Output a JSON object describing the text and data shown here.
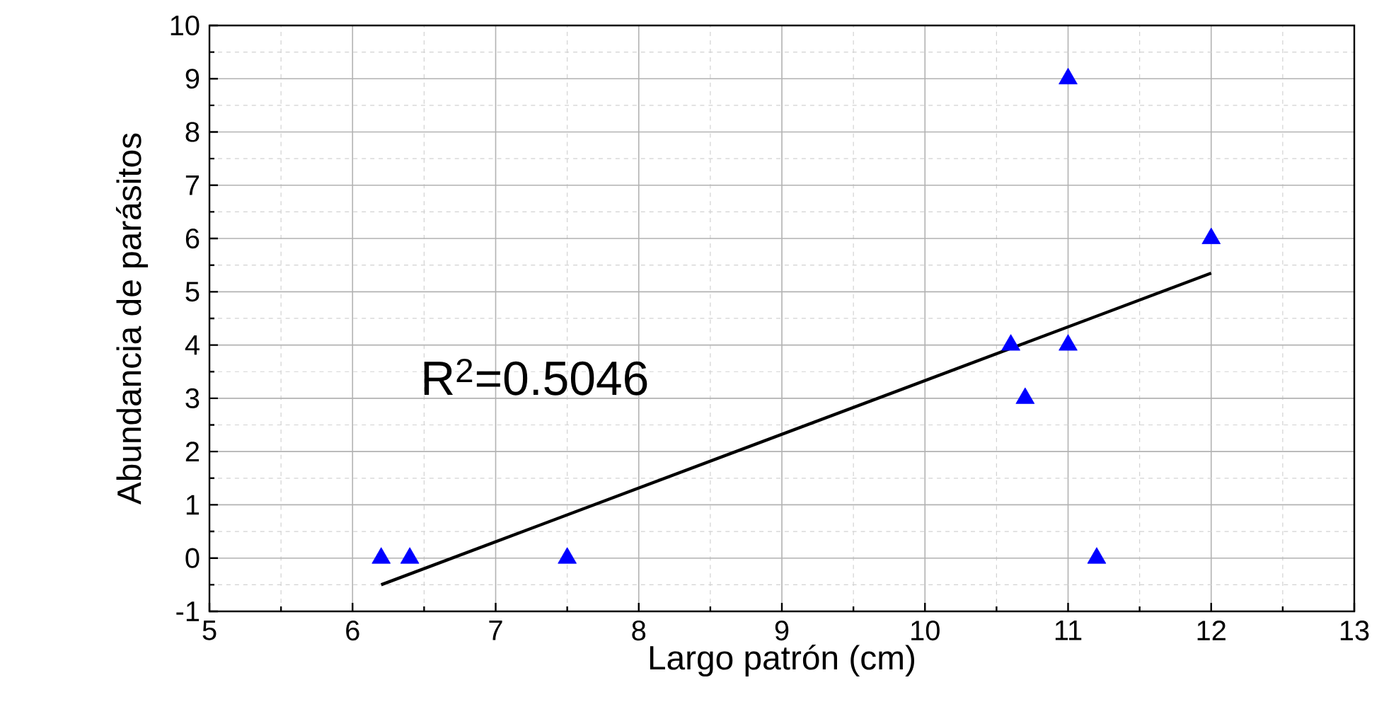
{
  "chart_data": {
    "type": "scatter",
    "xlabel": "Largo patrón (cm)",
    "ylabel": "Abundancia de parásitos",
    "xlim": [
      5,
      13
    ],
    "ylim": [
      -1,
      10
    ],
    "xticks": [
      5,
      6,
      7,
      8,
      9,
      10,
      11,
      12,
      13
    ],
    "yticks": [
      -1,
      0,
      1,
      2,
      3,
      4,
      5,
      6,
      7,
      8,
      9,
      10
    ],
    "grid": true,
    "series": [
      {
        "marker": "triangle",
        "color": "#0000ff",
        "x": [
          6.2,
          6.4,
          7.5,
          10.6,
          10.7,
          11,
          11,
          11.2,
          12
        ],
        "values": [
          0,
          0,
          0,
          4,
          3,
          9,
          4,
          0,
          6
        ]
      },
      {
        "type": "line",
        "marker": "none",
        "color": "#000000",
        "x": [
          6.2,
          12
        ],
        "values": [
          -0.5,
          5.35
        ]
      }
    ],
    "annotations": [
      "R$^{2}$=0.5046"
    ]
  }
}
